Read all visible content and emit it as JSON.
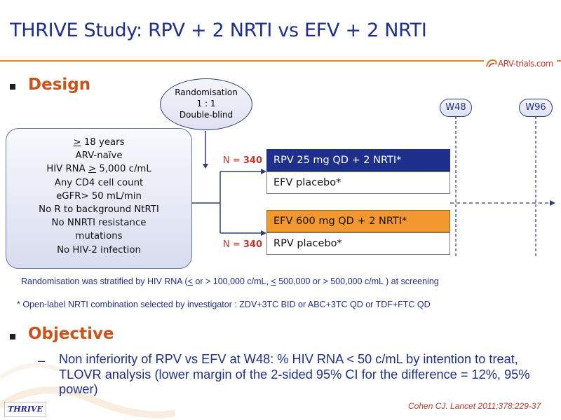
{
  "title": "THRIVE Study: RPV + 2 NRTI vs EFV + 2 NRTI",
  "logo": {
    "text": "ARV-trials.com"
  },
  "design": {
    "heading": "Design",
    "randomisation": [
      "Randomisation",
      "1 : 1",
      "Double-blind"
    ],
    "criteria": [
      {
        "prefix": "",
        "underlined": ">",
        "suffix": " 18 years"
      },
      {
        "prefix": "ARV-naïve",
        "underlined": "",
        "suffix": ""
      },
      {
        "prefix": "HIV RNA ",
        "underlined": ">",
        "suffix": " 5,000 c/mL"
      },
      {
        "prefix": "Any CD4 cell count",
        "underlined": "",
        "suffix": ""
      },
      {
        "prefix": "eGFR> 50 mL/min",
        "underlined": "",
        "suffix": ""
      },
      {
        "prefix": "No R to background NtRTI",
        "underlined": "",
        "suffix": ""
      },
      {
        "prefix": "No NNRTI resistance",
        "underlined": "",
        "suffix": ""
      },
      {
        "prefix": "mutations",
        "underlined": "",
        "suffix": ""
      },
      {
        "prefix": "No HIV-2 infection",
        "underlined": "",
        "suffix": ""
      }
    ],
    "arms": [
      {
        "n_prefix": "N = ",
        "n_value": "340",
        "drug": "RPV 25 mg QD + 2 NRTI*",
        "placebo": "EFV placebo*"
      },
      {
        "n_prefix": "N = ",
        "n_value": "340",
        "drug": "EFV 600 mg QD + 2 NRTI*",
        "placebo": "RPV placebo*"
      }
    ],
    "timepoints": [
      "W48",
      "W96"
    ],
    "stratification_note": {
      "prefix": "Randomisation was stratified by HIV RNA (",
      "u1": "<",
      "mid1": " or > 100,000 c/mL, ",
      "u2": "<",
      "mid2": " 500,000 or > 500,000 c/mL ) at screening"
    },
    "nrti_note": "* Open-label NRTI combination selected by investigator : ZDV+3TC BID or ABC+3TC QD or TDF+FTC QD",
    "colors": {
      "rpv_arm": "#1f2f8c",
      "efv_arm": "#f3982f",
      "accent": "#c8531b"
    }
  },
  "objective": {
    "heading": "Objective",
    "dash": "–",
    "text": "Non inferiority of RPV vs EFV at W48: % HIV RNA < 50 c/mL by intention to treat, TLOVR analysis (lower margin of the 2-sided 95% CI for the difference = 12%, 95% power)"
  },
  "citation": "Cohen CJ. Lancet 2011;378:229-37",
  "footer_badge": "THRIVE"
}
